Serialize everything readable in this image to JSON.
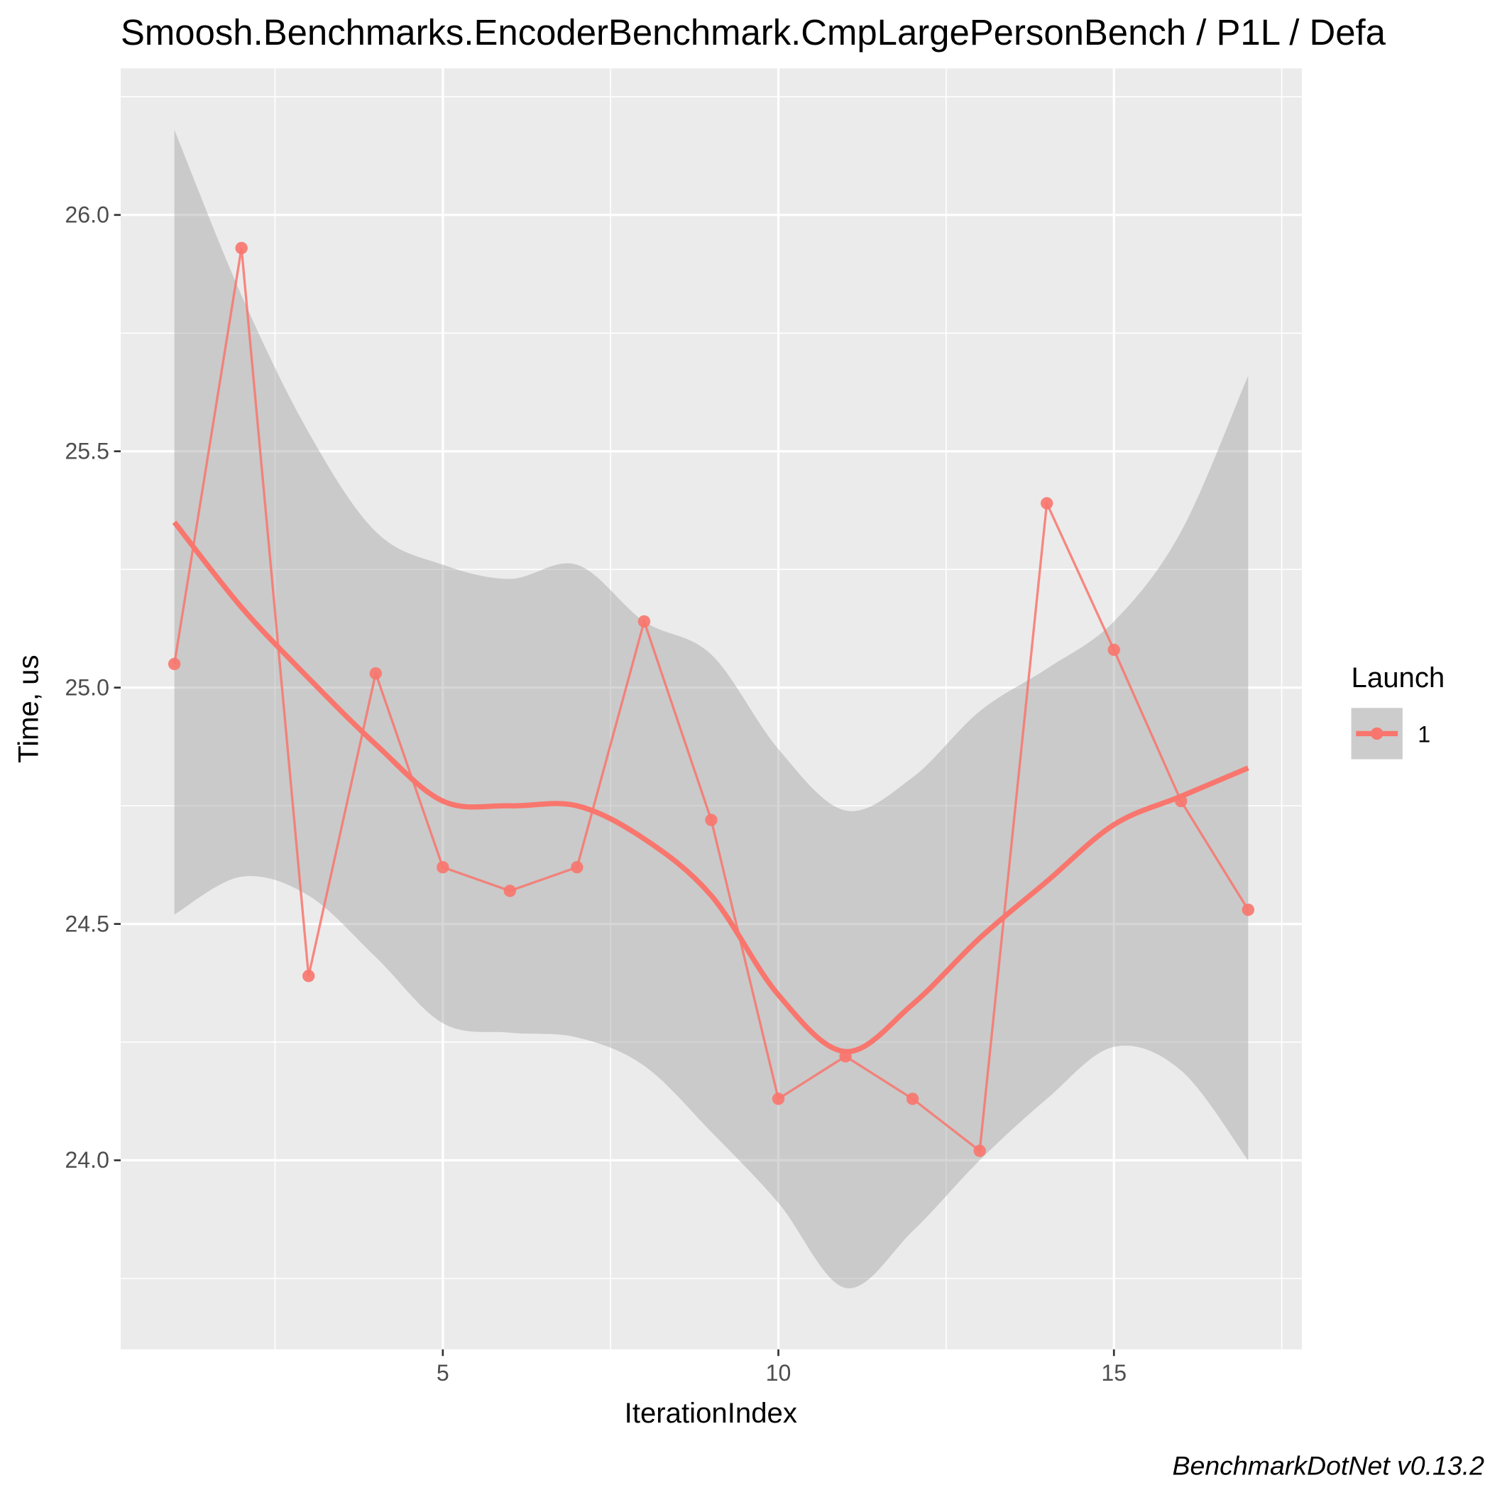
{
  "chart_data": {
    "type": "line",
    "title": "Smoosh.Benchmarks.EncoderBenchmark.CmpLargePersonBench / P1L / Defa",
    "x_label": "IterationIndex",
    "y_label": "Time, us",
    "caption": "BenchmarkDotNet v0.13.2",
    "legend_title": "Launch",
    "x": [
      1,
      2,
      3,
      4,
      5,
      6,
      7,
      8,
      9,
      10,
      11,
      12,
      13,
      14,
      15,
      16,
      17
    ],
    "series": [
      {
        "name": "1",
        "color": "#F8766D",
        "values": [
          25.05,
          25.93,
          24.39,
          25.03,
          24.62,
          24.57,
          24.62,
          25.14,
          24.72,
          24.13,
          24.22,
          24.13,
          24.02,
          25.39,
          25.08,
          24.76,
          24.53
        ],
        "smooth": [
          25.35,
          25.17,
          25.02,
          24.88,
          24.76,
          24.75,
          24.75,
          24.68,
          24.56,
          24.35,
          24.23,
          24.33,
          24.47,
          24.59,
          24.71,
          24.77,
          24.83
        ],
        "smooth_lower": [
          24.52,
          24.6,
          24.56,
          24.43,
          24.29,
          24.27,
          24.26,
          24.2,
          24.06,
          23.91,
          23.73,
          23.85,
          24.0,
          24.13,
          24.24,
          24.19,
          24.0
        ],
        "smooth_upper": [
          26.18,
          25.83,
          25.54,
          25.33,
          25.26,
          25.23,
          25.26,
          25.14,
          25.07,
          24.87,
          24.74,
          24.81,
          24.95,
          25.04,
          25.14,
          25.33,
          25.66
        ]
      }
    ],
    "xlim": [
      0.2,
      17.8
    ],
    "ylim": [
      23.6,
      26.31
    ],
    "xticks": [
      5,
      10,
      15
    ],
    "yticks": [
      {
        "value": 24,
        "label": "24.0"
      },
      {
        "value": 24.5,
        "label": "24.5"
      },
      {
        "value": 25,
        "label": "25.0"
      },
      {
        "value": 25.5,
        "label": "25.5"
      },
      {
        "value": 26,
        "label": "26.0"
      }
    ],
    "grid": true,
    "legend_position": "right"
  }
}
